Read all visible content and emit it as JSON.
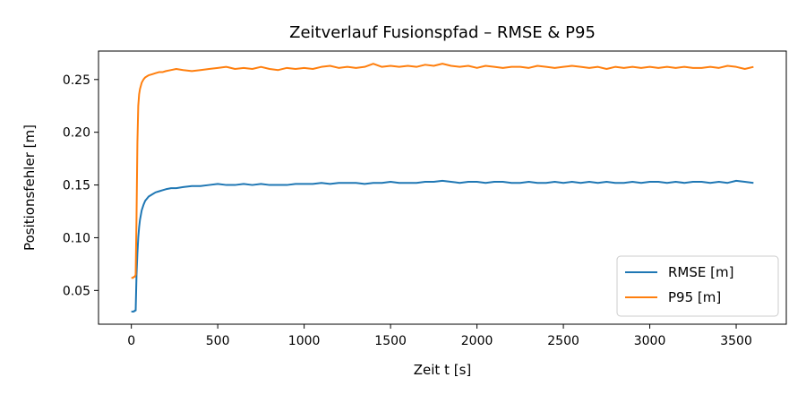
{
  "chart_data": {
    "type": "line",
    "title": "Zeitverlauf Fusionspfad – RMSE & P95",
    "xlabel": "Zeit t [s]",
    "ylabel": "Positionsfehler [m]",
    "xlim": [
      -190,
      3790
    ],
    "ylim": [
      0.018,
      0.277
    ],
    "xticks": [
      0,
      500,
      1000,
      1500,
      2000,
      2500,
      3000,
      3500
    ],
    "xtick_labels": [
      "0",
      "500",
      "1000",
      "1500",
      "2000",
      "2500",
      "3000",
      "3500"
    ],
    "yticks": [
      0.05,
      0.1,
      0.15,
      0.2,
      0.25
    ],
    "ytick_labels": [
      "0.05",
      "0.10",
      "0.15",
      "0.20",
      "0.25"
    ],
    "grid": false,
    "legend_position": "bottom-right",
    "series": [
      {
        "name": "RMSE [m]",
        "color": "#1f77b4",
        "x": [
          0,
          5,
          10,
          15,
          20,
          25,
          30,
          35,
          40,
          45,
          50,
          60,
          70,
          80,
          90,
          100,
          120,
          140,
          160,
          180,
          200,
          230,
          260,
          300,
          350,
          400,
          450,
          500,
          550,
          600,
          650,
          700,
          750,
          800,
          850,
          900,
          950,
          1000,
          1050,
          1100,
          1150,
          1200,
          1250,
          1300,
          1350,
          1400,
          1450,
          1500,
          1550,
          1600,
          1650,
          1700,
          1750,
          1800,
          1850,
          1900,
          1950,
          2000,
          2050,
          2100,
          2150,
          2200,
          2250,
          2300,
          2350,
          2400,
          2450,
          2500,
          2550,
          2600,
          2650,
          2700,
          2750,
          2800,
          2850,
          2900,
          2950,
          3000,
          3050,
          3100,
          3150,
          3200,
          3250,
          3300,
          3350,
          3400,
          3450,
          3500,
          3550,
          3600
        ],
        "values": [
          0.03,
          0.03,
          0.03,
          0.03,
          0.031,
          0.031,
          0.065,
          0.085,
          0.1,
          0.11,
          0.117,
          0.126,
          0.131,
          0.135,
          0.137,
          0.139,
          0.141,
          0.143,
          0.144,
          0.145,
          0.146,
          0.147,
          0.147,
          0.148,
          0.149,
          0.149,
          0.15,
          0.151,
          0.15,
          0.15,
          0.151,
          0.15,
          0.151,
          0.15,
          0.15,
          0.15,
          0.151,
          0.151,
          0.151,
          0.152,
          0.151,
          0.152,
          0.152,
          0.152,
          0.151,
          0.152,
          0.152,
          0.153,
          0.152,
          0.152,
          0.152,
          0.153,
          0.153,
          0.154,
          0.153,
          0.152,
          0.153,
          0.153,
          0.152,
          0.153,
          0.153,
          0.152,
          0.152,
          0.153,
          0.152,
          0.152,
          0.153,
          0.152,
          0.153,
          0.152,
          0.153,
          0.152,
          0.153,
          0.152,
          0.152,
          0.153,
          0.152,
          0.153,
          0.153,
          0.152,
          0.153,
          0.152,
          0.153,
          0.153,
          0.152,
          0.153,
          0.152,
          0.154,
          0.153,
          0.152
        ]
      },
      {
        "name": "P95 [m]",
        "color": "#ff7f0e",
        "x": [
          0,
          5,
          10,
          15,
          20,
          25,
          30,
          35,
          40,
          45,
          50,
          60,
          70,
          80,
          90,
          100,
          120,
          140,
          160,
          180,
          200,
          230,
          260,
          300,
          350,
          400,
          450,
          500,
          550,
          600,
          650,
          700,
          750,
          800,
          850,
          900,
          950,
          1000,
          1050,
          1100,
          1150,
          1200,
          1250,
          1300,
          1350,
          1400,
          1450,
          1500,
          1550,
          1600,
          1650,
          1700,
          1750,
          1800,
          1850,
          1900,
          1950,
          2000,
          2050,
          2100,
          2150,
          2200,
          2250,
          2300,
          2350,
          2400,
          2450,
          2500,
          2550,
          2600,
          2650,
          2700,
          2750,
          2800,
          2850,
          2900,
          2950,
          3000,
          3050,
          3100,
          3150,
          3200,
          3250,
          3300,
          3350,
          3400,
          3450,
          3500,
          3550,
          3600
        ],
        "values": [
          0.062,
          0.062,
          0.062,
          0.063,
          0.063,
          0.065,
          0.12,
          0.19,
          0.225,
          0.236,
          0.241,
          0.247,
          0.25,
          0.252,
          0.253,
          0.254,
          0.255,
          0.256,
          0.257,
          0.257,
          0.258,
          0.259,
          0.26,
          0.259,
          0.258,
          0.259,
          0.26,
          0.261,
          0.262,
          0.26,
          0.261,
          0.26,
          0.262,
          0.26,
          0.259,
          0.261,
          0.26,
          0.261,
          0.26,
          0.262,
          0.263,
          0.261,
          0.262,
          0.261,
          0.262,
          0.265,
          0.262,
          0.263,
          0.262,
          0.263,
          0.262,
          0.264,
          0.263,
          0.265,
          0.263,
          0.262,
          0.263,
          0.261,
          0.263,
          0.262,
          0.261,
          0.262,
          0.262,
          0.261,
          0.263,
          0.262,
          0.261,
          0.262,
          0.263,
          0.262,
          0.261,
          0.262,
          0.26,
          0.262,
          0.261,
          0.262,
          0.261,
          0.262,
          0.261,
          0.262,
          0.261,
          0.262,
          0.261,
          0.261,
          0.262,
          0.261,
          0.263,
          0.262,
          0.26,
          0.262
        ]
      }
    ]
  }
}
